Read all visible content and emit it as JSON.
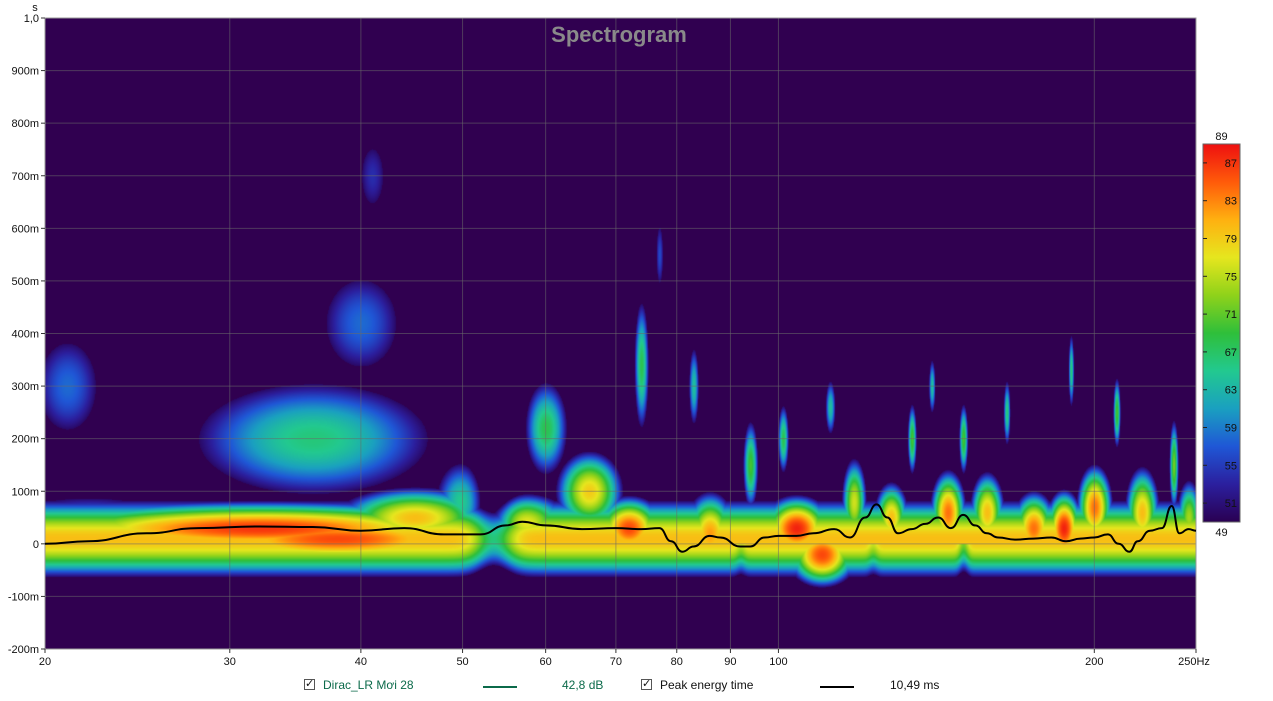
{
  "chart_data": {
    "type": "heatmap",
    "title": "Spectrogram",
    "xlabel": "",
    "ylabel": "",
    "x_unit": "Hz",
    "y_unit": "s",
    "x_scale": "log",
    "xlim": [
      20,
      250
    ],
    "ylim": [
      -0.2,
      1.0
    ],
    "x_ticks": [
      20,
      30,
      40,
      50,
      60,
      70,
      80,
      90,
      100,
      200,
      250
    ],
    "x_tick_labels": [
      "20",
      "30",
      "40",
      "50",
      "60",
      "70",
      "80",
      "90",
      "100",
      "200",
      "250Hz"
    ],
    "y_ticks": [
      1.0,
      0.9,
      0.8,
      0.7,
      0.6,
      0.5,
      0.4,
      0.3,
      0.2,
      0.1,
      0.0,
      -0.1,
      -0.2
    ],
    "y_tick_labels": [
      "1,0",
      "900m",
      "800m",
      "700m",
      "600m",
      "500m",
      "400m",
      "300m",
      "200m",
      "100m",
      "0",
      "-100m",
      "-200m"
    ],
    "grid": true,
    "colorbar": {
      "min": 49,
      "max": 89,
      "ticks": [
        87,
        83,
        79,
        75,
        71,
        67,
        63,
        59,
        55,
        51
      ],
      "top_label": "89",
      "bottom_label": "49",
      "colors": [
        "#2a0052",
        "#2b1f9e",
        "#1f57d6",
        "#1aa0c0",
        "#22c98f",
        "#2fbf3a",
        "#8fd21a",
        "#e6e61e",
        "#ffb010",
        "#ff5a0a",
        "#ee1010"
      ]
    },
    "background_color": "#300050",
    "peak_energy_curve": {
      "name": "Peak energy time",
      "color": "#000000",
      "points": [
        [
          20,
          0.0
        ],
        [
          22,
          0.005
        ],
        [
          25,
          0.02
        ],
        [
          28,
          0.03
        ],
        [
          32,
          0.033
        ],
        [
          36,
          0.032
        ],
        [
          40,
          0.025
        ],
        [
          44,
          0.03
        ],
        [
          48,
          0.018
        ],
        [
          52,
          0.018
        ],
        [
          55,
          0.035
        ],
        [
          57,
          0.042
        ],
        [
          60,
          0.035
        ],
        [
          65,
          0.028
        ],
        [
          70,
          0.03
        ],
        [
          74,
          0.028
        ],
        [
          77,
          0.03
        ],
        [
          79,
          0.005
        ],
        [
          81,
          -0.015
        ],
        [
          83,
          -0.005
        ],
        [
          86,
          0.015
        ],
        [
          88,
          0.012
        ],
        [
          92,
          -0.005
        ],
        [
          94,
          -0.005
        ],
        [
          97,
          0.012
        ],
        [
          100,
          0.015
        ],
        [
          104,
          0.015
        ],
        [
          108,
          0.02
        ],
        [
          113,
          0.028
        ],
        [
          117,
          0.012
        ],
        [
          121,
          0.05
        ],
        [
          124,
          0.075
        ],
        [
          127,
          0.05
        ],
        [
          130,
          0.02
        ],
        [
          134,
          0.028
        ],
        [
          138,
          0.038
        ],
        [
          142,
          0.05
        ],
        [
          146,
          0.03
        ],
        [
          150,
          0.055
        ],
        [
          154,
          0.035
        ],
        [
          158,
          0.02
        ],
        [
          162,
          0.012
        ],
        [
          168,
          0.008
        ],
        [
          175,
          0.01
        ],
        [
          182,
          0.012
        ],
        [
          188,
          0.005
        ],
        [
          194,
          0.01
        ],
        [
          200,
          0.012
        ],
        [
          206,
          0.018
        ],
        [
          211,
          0.0
        ],
        [
          216,
          -0.015
        ],
        [
          220,
          0.005
        ],
        [
          226,
          0.025
        ],
        [
          232,
          0.03
        ],
        [
          237,
          0.072
        ],
        [
          241,
          0.02
        ],
        [
          246,
          0.028
        ],
        [
          250,
          0.025
        ]
      ]
    },
    "blobs": [
      {
        "f": 32,
        "t": 0.03,
        "sf": 1.8,
        "st": 0.05,
        "v": 87
      },
      {
        "f": 38,
        "t": 0.01,
        "sf": 1.5,
        "st": 0.05,
        "v": 86
      },
      {
        "f": 26,
        "t": 0.02,
        "sf": 1.6,
        "st": 0.07,
        "v": 72
      },
      {
        "f": 22,
        "t": 0.02,
        "sf": 1.35,
        "st": 0.09,
        "v": 66
      },
      {
        "f": 21,
        "t": 0.3,
        "sf": 1.12,
        "st": 0.15,
        "v": 58
      },
      {
        "f": 36,
        "t": 0.2,
        "sf": 1.4,
        "st": 0.14,
        "v": 66
      },
      {
        "f": 40,
        "t": 0.42,
        "sf": 1.15,
        "st": 0.15,
        "v": 58
      },
      {
        "f": 41,
        "t": 0.7,
        "sf": 1.06,
        "st": 0.13,
        "v": 54
      },
      {
        "f": 45,
        "t": 0.05,
        "sf": 1.2,
        "st": 0.06,
        "v": 80
      },
      {
        "f": 50,
        "t": 0.08,
        "sf": 1.08,
        "st": 0.1,
        "v": 66
      },
      {
        "f": 57,
        "t": 0.04,
        "sf": 1.12,
        "st": 0.06,
        "v": 78
      },
      {
        "f": 60,
        "t": 0.22,
        "sf": 1.06,
        "st": 0.11,
        "v": 68
      },
      {
        "f": 66,
        "t": 0.1,
        "sf": 1.08,
        "st": 0.08,
        "v": 79
      },
      {
        "f": 72,
        "t": 0.03,
        "sf": 1.08,
        "st": 0.06,
        "v": 86
      },
      {
        "f": 74,
        "t": 0.34,
        "sf": 1.02,
        "st": 0.15,
        "v": 68
      },
      {
        "f": 77,
        "t": 0.55,
        "sf": 1.015,
        "st": 0.11,
        "v": 56
      },
      {
        "f": 86,
        "t": 0.02,
        "sf": 1.06,
        "st": 0.08,
        "v": 82
      },
      {
        "f": 83,
        "t": 0.3,
        "sf": 1.015,
        "st": 0.1,
        "v": 64
      },
      {
        "f": 94,
        "t": 0.15,
        "sf": 1.02,
        "st": 0.1,
        "v": 70
      },
      {
        "f": 104,
        "t": 0.03,
        "sf": 1.08,
        "st": 0.06,
        "v": 88
      },
      {
        "f": 110,
        "t": -0.02,
        "sf": 1.08,
        "st": 0.06,
        "v": 86
      },
      {
        "f": 101,
        "t": 0.2,
        "sf": 1.015,
        "st": 0.08,
        "v": 68
      },
      {
        "f": 112,
        "t": 0.26,
        "sf": 1.015,
        "st": 0.07,
        "v": 64
      },
      {
        "f": 118,
        "t": 0.08,
        "sf": 1.03,
        "st": 0.09,
        "v": 76
      },
      {
        "f": 128,
        "t": 0.05,
        "sf": 1.04,
        "st": 0.07,
        "v": 80
      },
      {
        "f": 134,
        "t": 0.2,
        "sf": 1.012,
        "st": 0.08,
        "v": 70
      },
      {
        "f": 140,
        "t": 0.3,
        "sf": 1.01,
        "st": 0.07,
        "v": 64
      },
      {
        "f": 145,
        "t": 0.06,
        "sf": 1.04,
        "st": 0.08,
        "v": 84
      },
      {
        "f": 150,
        "t": 0.2,
        "sf": 1.012,
        "st": 0.08,
        "v": 70
      },
      {
        "f": 158,
        "t": 0.06,
        "sf": 1.04,
        "st": 0.08,
        "v": 80
      },
      {
        "f": 165,
        "t": 0.25,
        "sf": 1.01,
        "st": 0.08,
        "v": 66
      },
      {
        "f": 175,
        "t": 0.03,
        "sf": 1.05,
        "st": 0.07,
        "v": 84
      },
      {
        "f": 187,
        "t": 0.03,
        "sf": 1.04,
        "st": 0.07,
        "v": 88
      },
      {
        "f": 190,
        "t": 0.33,
        "sf": 1.008,
        "st": 0.09,
        "v": 66
      },
      {
        "f": 200,
        "t": 0.07,
        "sf": 1.04,
        "st": 0.08,
        "v": 84
      },
      {
        "f": 210,
        "t": 0.25,
        "sf": 1.01,
        "st": 0.08,
        "v": 70
      },
      {
        "f": 222,
        "t": 0.06,
        "sf": 1.04,
        "st": 0.09,
        "v": 80
      },
      {
        "f": 238,
        "t": 0.15,
        "sf": 1.012,
        "st": 0.1,
        "v": 72
      },
      {
        "f": 246,
        "t": 0.05,
        "sf": 1.03,
        "st": 0.08,
        "v": 74
      }
    ],
    "dips": [
      {
        "f": 53.5,
        "sf": 1.03,
        "v": 60,
        "tmin": -0.2,
        "tmax": 0.5
      },
      {
        "f": 150,
        "sf": 1.008,
        "v": 40,
        "tmin": -0.2,
        "tmax": 0.0
      },
      {
        "f": 123,
        "sf": 1.008,
        "v": 30,
        "tmin": -0.2,
        "tmax": 0.0
      },
      {
        "f": 92,
        "sf": 1.008,
        "v": 30,
        "tmin": -0.2,
        "tmax": 0.0
      }
    ]
  },
  "legend": {
    "series_label": "Dirac_LR Mơi 28",
    "series_color": "#0b6a4a",
    "series_value": "42,8 dB",
    "peak_label": "Peak energy time",
    "peak_color": "#000000",
    "peak_value": "10,49 ms"
  }
}
